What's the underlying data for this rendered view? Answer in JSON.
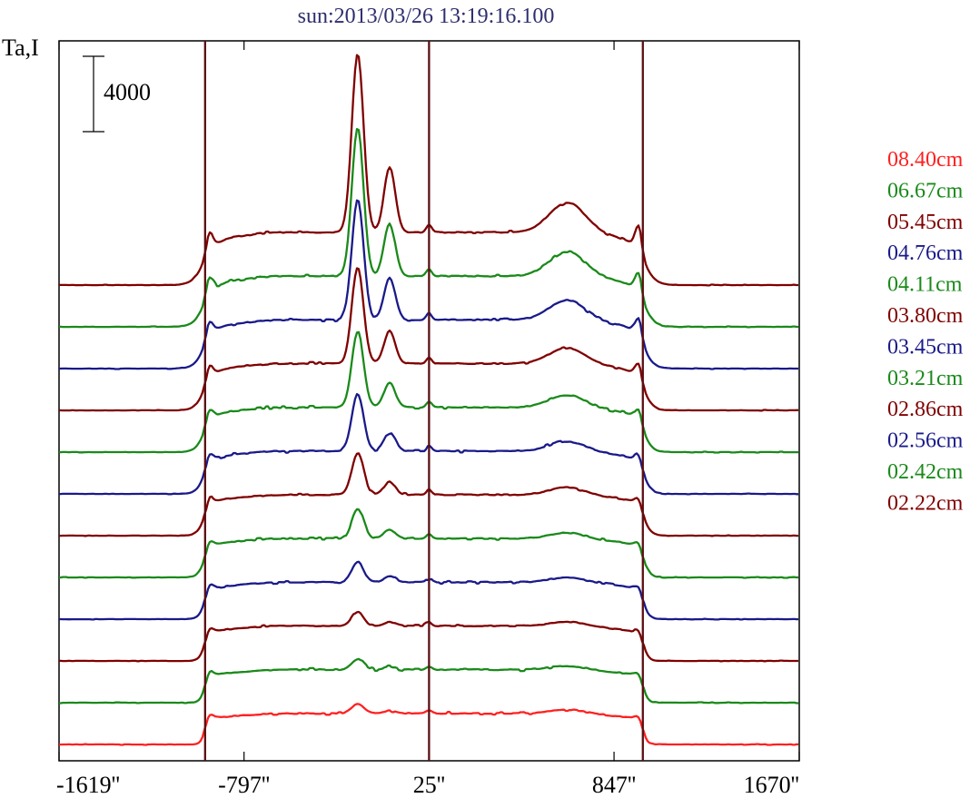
{
  "chart_data": {
    "type": "line",
    "title": "sun:2013/03/26 13:19:16.100",
    "ylabel": "Ta,I",
    "scale_bar_label": "4000",
    "scale_bar_value": 4000,
    "x_ticks": [
      {
        "value": -1619,
        "label": "-1619''"
      },
      {
        "value": -797,
        "label": "-797''"
      },
      {
        "value": 25,
        "label": "25''"
      },
      {
        "value": 847,
        "label": "847''"
      },
      {
        "value": 1670,
        "label": "1670''"
      }
    ],
    "xlim": [
      -1619,
      1670
    ],
    "vertical_lines_x": [
      -970,
      25,
      975
    ],
    "colors": {
      "red": "#ff2020",
      "green": "#1a8a1a",
      "darkred": "#800000",
      "navy": "#1a1a8a",
      "frame": "#000000",
      "marker": "#5a0f12"
    },
    "series": [
      {
        "name": "08.40cm",
        "color": "#ff2020"
      },
      {
        "name": "06.67cm",
        "color": "#1a8a1a"
      },
      {
        "name": "05.45cm",
        "color": "#800000"
      },
      {
        "name": "04.76cm",
        "color": "#1a1a8a"
      },
      {
        "name": "04.11cm",
        "color": "#1a8a1a"
      },
      {
        "name": "03.80cm",
        "color": "#800000"
      },
      {
        "name": "03.45cm",
        "color": "#1a1a8a"
      },
      {
        "name": "03.21cm",
        "color": "#1a8a1a"
      },
      {
        "name": "02.86cm",
        "color": "#800000"
      },
      {
        "name": "02.56cm",
        "color": "#1a1a8a"
      },
      {
        "name": "02.42cm",
        "color": "#1a8a1a"
      },
      {
        "name": "02.22cm",
        "color": "#800000"
      }
    ]
  }
}
